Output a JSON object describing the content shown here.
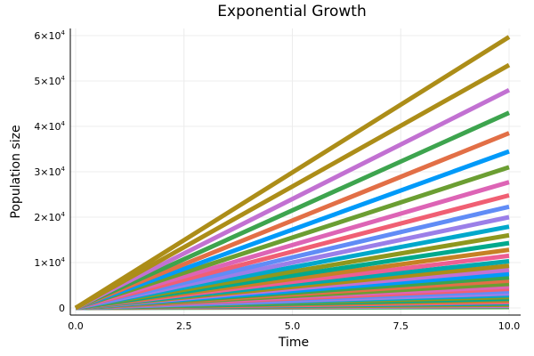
{
  "chart_data": {
    "type": "line",
    "title": "Exponential Growth",
    "xlabel": "Time",
    "ylabel": "Population size",
    "xlim": [
      0,
      10
    ],
    "ylim": [
      0,
      60000
    ],
    "x_ticks": [
      0.0,
      2.5,
      5.0,
      7.5,
      10.0
    ],
    "x_tick_labels": [
      "0.0",
      "2.5",
      "5.0",
      "7.5",
      "10.0"
    ],
    "y_ticks": [
      0,
      10000,
      20000,
      30000,
      40000,
      50000,
      60000
    ],
    "y_tick_labels": [
      {
        "mantissa": "0",
        "exponent": ""
      },
      {
        "mantissa": "1×10",
        "exponent": "4"
      },
      {
        "mantissa": "2×10",
        "exponent": "4"
      },
      {
        "mantissa": "3×10",
        "exponent": "4"
      },
      {
        "mantissa": "4×10",
        "exponent": "4"
      },
      {
        "mantissa": "5×10",
        "exponent": "4"
      },
      {
        "mantissa": "6×10",
        "exponent": "4"
      }
    ],
    "grid": true,
    "legend": "none",
    "x": [
      0,
      10
    ],
    "series": [
      {
        "values": [
          0,
          200
        ],
        "color": "#3da44e"
      },
      {
        "values": [
          0,
          450
        ],
        "color": "#c271d2"
      },
      {
        "values": [
          0,
          700
        ],
        "color": "#ac8d18"
      },
      {
        "values": [
          0,
          1000
        ],
        "color": "#00a9ad"
      },
      {
        "values": [
          0,
          1300
        ],
        "color": "#ed5e93"
      },
      {
        "values": [
          0,
          1600
        ],
        "color": "#c68125"
      },
      {
        "values": [
          0,
          2000
        ],
        "color": "#00a98d"
      },
      {
        "values": [
          0,
          2400
        ],
        "color": "#8e971e"
      },
      {
        "values": [
          0,
          2800
        ],
        "color": "#00a8cb"
      },
      {
        "values": [
          0,
          3200
        ],
        "color": "#9b7fe8"
      },
      {
        "values": [
          0,
          3700
        ],
        "color": "#608cf6"
      },
      {
        "values": [
          0,
          4200
        ],
        "color": "#f05f73"
      },
      {
        "values": [
          0,
          4700
        ],
        "color": "#dd64b5"
      },
      {
        "values": [
          0,
          5300
        ],
        "color": "#6b9e32"
      },
      {
        "values": [
          0,
          6000
        ],
        "color": "#e26f46"
      },
      {
        "values": [
          0,
          6700
        ],
        "color": "#3da44e"
      },
      {
        "values": [
          0,
          7500
        ],
        "color": "#009af9"
      },
      {
        "values": [
          0,
          8400
        ],
        "color": "#c271d2"
      },
      {
        "values": [
          0,
          9300
        ],
        "color": "#ac8d18"
      },
      {
        "values": [
          0,
          10300
        ],
        "color": "#00a9ad"
      },
      {
        "values": [
          0,
          11500
        ],
        "color": "#ed5e93"
      },
      {
        "values": [
          0,
          12800
        ],
        "color": "#c68125"
      },
      {
        "values": [
          0,
          14300
        ],
        "color": "#00a98d"
      },
      {
        "values": [
          0,
          16000
        ],
        "color": "#8e971e"
      },
      {
        "values": [
          0,
          17900
        ],
        "color": "#00a8cb"
      },
      {
        "values": [
          0,
          20000
        ],
        "color": "#9b7fe8"
      },
      {
        "values": [
          0,
          22300
        ],
        "color": "#608cf6"
      },
      {
        "values": [
          0,
          24800
        ],
        "color": "#f05f73"
      },
      {
        "values": [
          0,
          27700
        ],
        "color": "#dd64b5"
      },
      {
        "values": [
          0,
          31000
        ],
        "color": "#6b9e32"
      },
      {
        "values": [
          0,
          34500
        ],
        "color": "#009af9"
      },
      {
        "values": [
          0,
          38500
        ],
        "color": "#e26f46"
      },
      {
        "values": [
          0,
          43000
        ],
        "color": "#3da44e"
      },
      {
        "values": [
          0,
          48000
        ],
        "color": "#c271d2"
      },
      {
        "values": [
          0,
          53500
        ],
        "color": "#ac8d18"
      },
      {
        "values": [
          0,
          59700
        ],
        "color": "#ac8d18"
      }
    ]
  }
}
